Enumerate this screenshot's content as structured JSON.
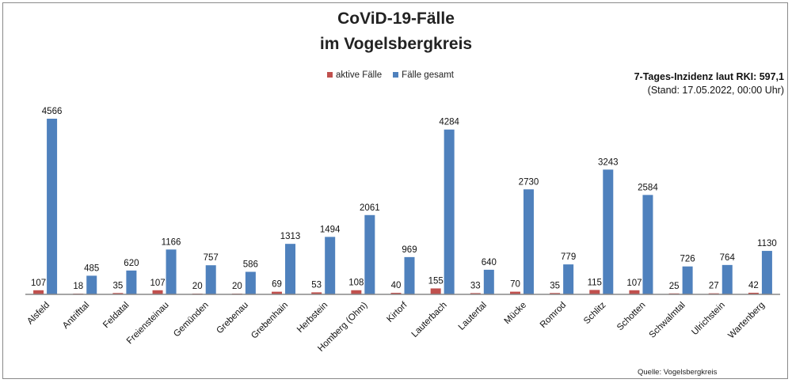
{
  "chart_data": {
    "type": "bar",
    "title": [
      "CoViD-19-Fälle",
      "im Vogelsbergkreis"
    ],
    "categories": [
      "Alsfeld",
      "Antrifttal",
      "Feldatal",
      "Freiensteinau",
      "Gemünden",
      "Grebenau",
      "Grebenhain",
      "Herbstein",
      "Homberg (Ohm)",
      "Kirtorf",
      "Lauterbach",
      "Lautertal",
      "Mücke",
      "Romrod",
      "Schlitz",
      "Schotten",
      "Schwalmtal",
      "Ulrichstein",
      "Wartenberg"
    ],
    "series": [
      {
        "name": "aktive Fälle",
        "color": "#c0504d",
        "values": [
          107,
          18,
          35,
          107,
          20,
          20,
          69,
          53,
          108,
          40,
          155,
          33,
          70,
          35,
          115,
          107,
          25,
          27,
          42
        ]
      },
      {
        "name": "Fälle gesamt",
        "color": "#4f81bd",
        "values": [
          4566,
          485,
          620,
          1166,
          757,
          586,
          1313,
          1494,
          2061,
          969,
          4284,
          640,
          2730,
          779,
          3243,
          2584,
          726,
          764,
          1130
        ]
      }
    ],
    "ylim": [
      0,
      4566
    ],
    "grid": false,
    "legend_position": "top",
    "data_labels": true
  },
  "info": {
    "incidence": "7-Tages-Inzidenz laut RKI: 597,1",
    "stand": "(Stand: 17.05.2022, 00:00 Uhr)"
  },
  "source": "Quelle: Vogelsbergkreis"
}
